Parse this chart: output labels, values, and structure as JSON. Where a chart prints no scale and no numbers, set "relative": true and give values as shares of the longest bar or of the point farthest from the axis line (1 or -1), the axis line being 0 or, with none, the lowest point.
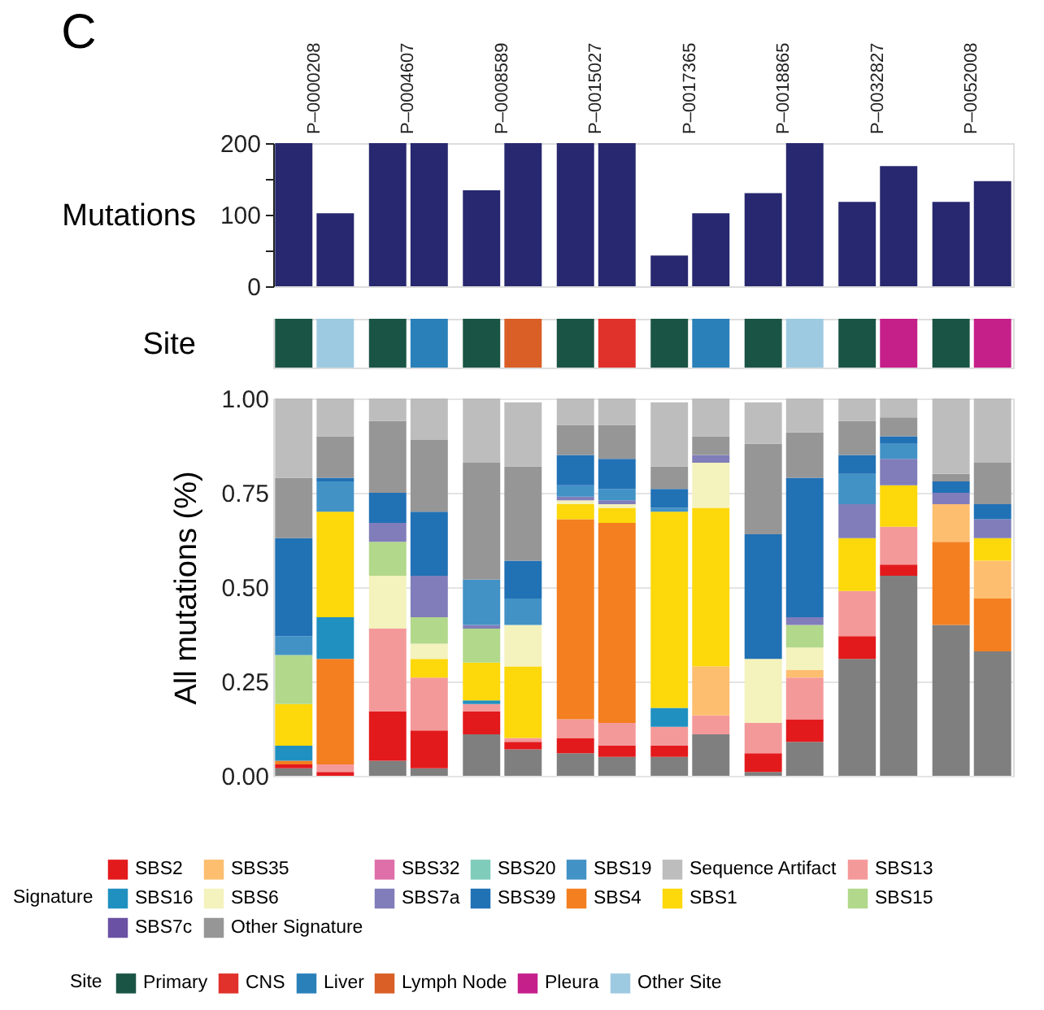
{
  "chart_data": [
    {
      "type": "bar",
      "title": "C",
      "ylabel": "Mutations",
      "categories": [
        "P–0000208",
        "P–0004607",
        "P–0008589",
        "P–0015027",
        "P–0017365",
        "P–0018865",
        "P–0032827",
        "P–0052008"
      ],
      "series": [
        {
          "color": "#27286f",
          "values": [
            200,
            200,
            134,
            200,
            43,
            130,
            118,
            118
          ]
        },
        {
          "color": "#27286f",
          "values": [
            102,
            200,
            200,
            200,
            102,
            200,
            168,
            147
          ]
        }
      ],
      "ylim": [
        0,
        200
      ],
      "yticks": [
        0,
        {
          "value": 50,
          "label": null
        },
        100,
        {
          "value": 150,
          "label": null
        },
        200
      ],
      "grid": false,
      "legend": false
    },
    {
      "type": "bar",
      "relative": true,
      "stacked": true,
      "ylabel": "Site",
      "categories": [
        null,
        null,
        null,
        null,
        null,
        null,
        null,
        null,
        null,
        null,
        null,
        null,
        null,
        null,
        null,
        null
      ],
      "legend_title": "Site",
      "legend": "bottom",
      "series": [
        {
          "name": "Primary",
          "color": "#1a5445",
          "values": [
            1,
            null,
            1,
            null,
            1,
            null,
            1,
            null,
            1,
            null,
            1,
            null,
            1,
            null,
            1,
            null
          ]
        },
        {
          "name": "CNS",
          "color": "#e0312a",
          "values": [
            null,
            null,
            null,
            null,
            null,
            null,
            null,
            1,
            null,
            null,
            null,
            null,
            null,
            null,
            null,
            null
          ]
        },
        {
          "name": "Liver",
          "color": "#2a80b9",
          "values": [
            null,
            null,
            null,
            1,
            null,
            null,
            null,
            null,
            null,
            1,
            null,
            null,
            null,
            null,
            null,
            null
          ]
        },
        {
          "name": "Lymph Node",
          "color": "#d95f27",
          "values": [
            null,
            null,
            null,
            null,
            null,
            1,
            null,
            null,
            null,
            null,
            null,
            null,
            null,
            null,
            null,
            null
          ]
        },
        {
          "name": "Pleura",
          "color": "#c51f8a",
          "values": [
            null,
            null,
            null,
            null,
            null,
            null,
            null,
            null,
            null,
            null,
            null,
            null,
            null,
            1,
            null,
            1
          ]
        },
        {
          "name": "Other Site",
          "color": "#9ecae1",
          "values": [
            null,
            1,
            null,
            null,
            null,
            null,
            null,
            null,
            null,
            null,
            null,
            1,
            null,
            null,
            null,
            null
          ]
        }
      ]
    },
    {
      "type": "bar",
      "stacked": true,
      "ylabel": "All  mutations (%)",
      "categories": [
        null,
        null,
        null,
        null,
        null,
        null,
        null,
        null,
        null,
        null,
        null,
        null,
        null,
        null,
        null,
        null
      ],
      "ylim": [
        0,
        1
      ],
      "yticks": [
        {
          "value": 0,
          "label": "0.00"
        },
        {
          "value": 0.25,
          "label": "0.25"
        },
        {
          "value": 0.5,
          "label": "0.50"
        },
        {
          "value": 0.75,
          "label": "0.75"
        },
        {
          "value": 1,
          "label": "1.00"
        }
      ],
      "grid": "y",
      "legend": "bottom",
      "legend_title": "Signature",
      "series": [
        {
          "color": "#7f7f7f",
          "values": [
            0.02,
            null,
            0.04,
            0.02,
            0.11,
            0.07,
            0.06,
            0.05,
            0.05,
            0.11,
            0.01,
            0.09,
            0.31,
            0.53,
            0.4,
            0.33
          ]
        },
        {
          "name": "SBS2",
          "color": "#e31a1c",
          "values": [
            0.01,
            0.01,
            0.13,
            0.1,
            0.06,
            0.02,
            0.04,
            0.03,
            0.03,
            null,
            0.05,
            0.06,
            0.06,
            0.03,
            null,
            null
          ]
        },
        {
          "name": "SBS13",
          "color": "#f4999a",
          "values": [
            null,
            0.02,
            0.22,
            0.14,
            0.02,
            0.01,
            0.05,
            0.06,
            0.05,
            0.05,
            0.08,
            0.11,
            0.12,
            0.1,
            null,
            null
          ]
        },
        {
          "name": "SBS4",
          "color": "#f47f20",
          "values": [
            0.01,
            0.28,
            null,
            null,
            null,
            null,
            0.53,
            0.53,
            null,
            null,
            null,
            null,
            null,
            null,
            0.22,
            0.14
          ]
        },
        {
          "name": "SBS35",
          "color": "#fdbe6f",
          "values": [
            null,
            null,
            null,
            null,
            null,
            null,
            null,
            null,
            null,
            0.13,
            null,
            0.02,
            null,
            null,
            0.1,
            0.1
          ]
        },
        {
          "name": "SBS16",
          "color": "#2090c0",
          "values": [
            0.04,
            0.11,
            null,
            null,
            0.01,
            null,
            null,
            null,
            0.05,
            null,
            null,
            null,
            null,
            null,
            null,
            null
          ]
        },
        {
          "name": "SBS1",
          "color": "#fdd80a",
          "values": [
            0.11,
            0.28,
            null,
            0.05,
            0.1,
            0.19,
            0.04,
            0.04,
            0.52,
            0.42,
            null,
            null,
            0.14,
            0.11,
            null,
            0.06
          ]
        },
        {
          "name": "SBS32",
          "color": "#de6fa8",
          "values": [
            null,
            null,
            null,
            null,
            null,
            null,
            null,
            null,
            null,
            null,
            null,
            null,
            null,
            null,
            null,
            null
          ]
        },
        {
          "name": "SBS6",
          "color": "#f4f2bd",
          "values": [
            null,
            null,
            0.14,
            0.04,
            null,
            0.11,
            0.01,
            0.01,
            null,
            0.12,
            0.17,
            0.06,
            null,
            null,
            null,
            null
          ]
        },
        {
          "name": "SBS15",
          "color": "#b2d88b",
          "values": [
            0.13,
            null,
            0.09,
            0.07,
            0.09,
            null,
            null,
            null,
            null,
            null,
            null,
            0.06,
            null,
            null,
            null,
            null
          ]
        },
        {
          "name": "SBS20",
          "color": "#7fccbb",
          "values": [
            null,
            null,
            null,
            null,
            null,
            null,
            null,
            null,
            null,
            null,
            null,
            null,
            null,
            null,
            null,
            null
          ]
        },
        {
          "name": "SBS7a",
          "color": "#807dba",
          "values": [
            null,
            null,
            0.05,
            0.11,
            0.01,
            null,
            0.01,
            0.01,
            null,
            0.02,
            null,
            0.02,
            0.09,
            0.07,
            0.03,
            0.05
          ]
        },
        {
          "name": "SBS7c",
          "color": "#6a51a3",
          "values": [
            null,
            null,
            null,
            null,
            null,
            null,
            null,
            null,
            null,
            null,
            null,
            null,
            null,
            null,
            null,
            null
          ]
        },
        {
          "name": "SBS19",
          "color": "#4292c6",
          "values": [
            0.05,
            0.08,
            null,
            null,
            0.12,
            0.07,
            0.03,
            0.03,
            0.01,
            null,
            null,
            null,
            0.08,
            0.04,
            null,
            null
          ]
        },
        {
          "name": "SBS39",
          "color": "#2171b5",
          "values": [
            0.26,
            0.01,
            0.08,
            0.17,
            null,
            0.1,
            0.08,
            0.08,
            0.05,
            null,
            0.33,
            0.37,
            0.05,
            0.02,
            0.03,
            0.04
          ]
        },
        {
          "name": "Other Signature",
          "color": "#969696",
          "values": [
            0.16,
            0.11,
            0.19,
            0.19,
            0.31,
            0.25,
            0.08,
            0.09,
            0.06,
            0.05,
            0.24,
            0.12,
            0.09,
            0.05,
            0.02,
            0.11
          ]
        },
        {
          "name": "Sequence Artifact",
          "color": "#bdbdbd",
          "values": [
            0.21,
            0.1,
            0.06,
            0.11,
            0.17,
            0.17,
            0.07,
            0.07,
            0.17,
            0.1,
            0.11,
            0.09,
            0.06,
            0.05,
            0.2,
            0.17
          ]
        }
      ]
    }
  ]
}
